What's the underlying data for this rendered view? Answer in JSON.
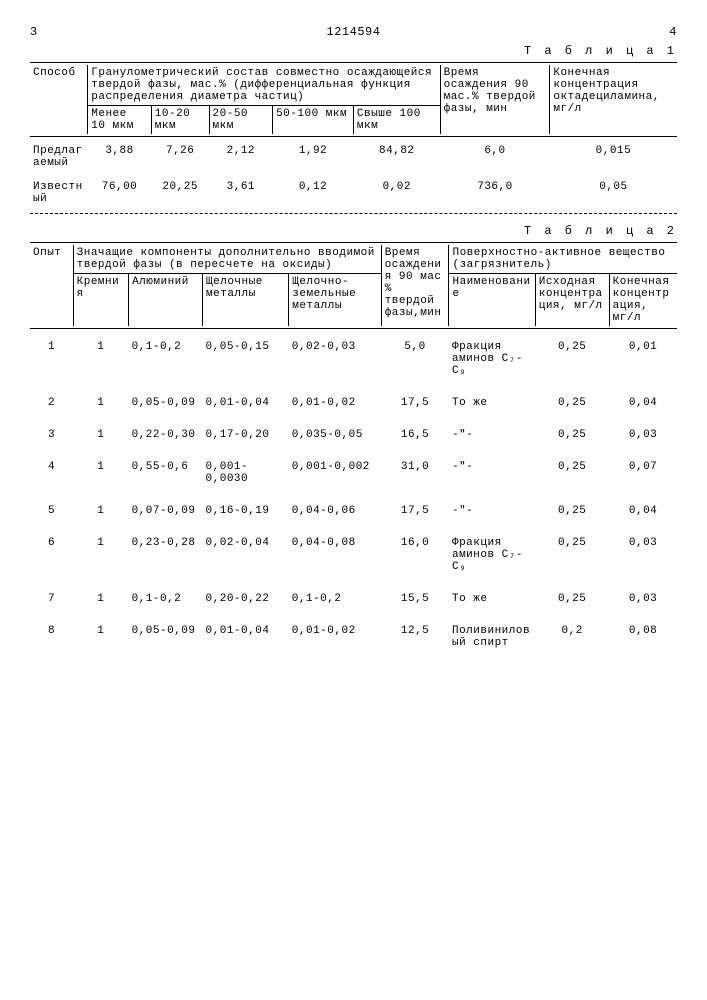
{
  "page": {
    "left_num": "3",
    "doc_num": "1214594",
    "right_num": "4"
  },
  "t1": {
    "label": "Т а б л и ц а 1",
    "h": {
      "method": "Способ",
      "gran": "Гранулометрический состав совместно осаждающейся твердой фазы, мас.% (дифференциальная функция распределения диаметра частиц)",
      "c1": "Менее 10 мкм",
      "c2": "10-20 мкм",
      "c3": "20-50 мкм",
      "c4": "50-100 мкм",
      "c5": "Свыше 100 мкм",
      "time": "Время осаждения 90 мас.% твердой фазы, мин",
      "konc": "Конечная концентрация октадециламина, мг/л"
    },
    "r1": {
      "m": "Предлагаемый",
      "v1": "3,88",
      "v2": "7,26",
      "v3": "2,12",
      "v4": "1,92",
      "v5": "84,82",
      "t": "6,0",
      "k": "0,015"
    },
    "r2": {
      "m": "Известный",
      "v1": "76,00",
      "v2": "20,25",
      "v3": "3,61",
      "v4": "0,12",
      "v5": "0,02",
      "t": "736,0",
      "k": "0,05"
    }
  },
  "t2": {
    "label": "Т а б л и ц а 2",
    "h": {
      "opyt": "Опыт",
      "znach": "Значащие компоненты дополнительно вводимой твердой фазы (в пересчете на оксиды)",
      "krem": "Кремния",
      "al": "Алюминий",
      "shel": "Щелочные металлы",
      "shelz": "Щелочно-земельные металлы",
      "time": "Время осаждения 90 мас % твердой фазы,мин",
      "pav": "Поверхностно-активное вещество (загрязнитель)",
      "naim": "Наименование",
      "isx": "Исходная концентрация, мг/л",
      "kon": "Конечная концентрация, мг/л"
    },
    "rows": [
      {
        "n": "1",
        "k": "1",
        "al": "0,1-0,2",
        "sh": "0,05-0,15",
        "sz": "0,02-0,03",
        "t": "5,0",
        "nm": "Фракция аминов C₇- C₉",
        "i": "0,25",
        "ko": "0,01"
      },
      {
        "n": "2",
        "k": "1",
        "al": "0,05-0,09",
        "sh": "0,01-0,04",
        "sz": "0,01-0,02",
        "t": "17,5",
        "nm": "То же",
        "i": "0,25",
        "ko": "0,04"
      },
      {
        "n": "3",
        "k": "1",
        "al": "0,22-0,30",
        "sh": "0,17-0,20",
        "sz": "0,035-0,05",
        "t": "16,5",
        "nm": "-\"-",
        "i": "0,25",
        "ko": "0,03"
      },
      {
        "n": "4",
        "k": "1",
        "al": "0,55-0,6",
        "sh": "0,001-0,0030",
        "sz": "0,001-0,002",
        "t": "31,0",
        "nm": "-\"-",
        "i": "0,25",
        "ko": "0,07"
      },
      {
        "n": "5",
        "k": "1",
        "al": "0,07-0,09",
        "sh": "0,16-0,19",
        "sz": "0,04-0,06",
        "t": "17,5",
        "nm": "-\"-",
        "i": "0,25",
        "ko": "0,04"
      },
      {
        "n": "6",
        "k": "1",
        "al": "0,23-0,28",
        "sh": "0,02-0,04",
        "sz": "0,04-0,08",
        "t": "16,0",
        "nm": "Фракция аминов C₇- C₉",
        "i": "0,25",
        "ko": "0,03"
      },
      {
        "n": "7",
        "k": "1",
        "al": "0,1-0,2",
        "sh": "0,20-0,22",
        "sz": "0,1-0,2",
        "t": "15,5",
        "nm": "То же",
        "i": "0,25",
        "ko": "0,03"
      },
      {
        "n": "8",
        "k": "1",
        "al": "0,05-0,09",
        "sh": "0,01-0,04",
        "sz": "0,01-0,02",
        "t": "12,5",
        "nm": "Поливиниловый спирт",
        "i": "0,2",
        "ko": "0,08"
      }
    ]
  }
}
